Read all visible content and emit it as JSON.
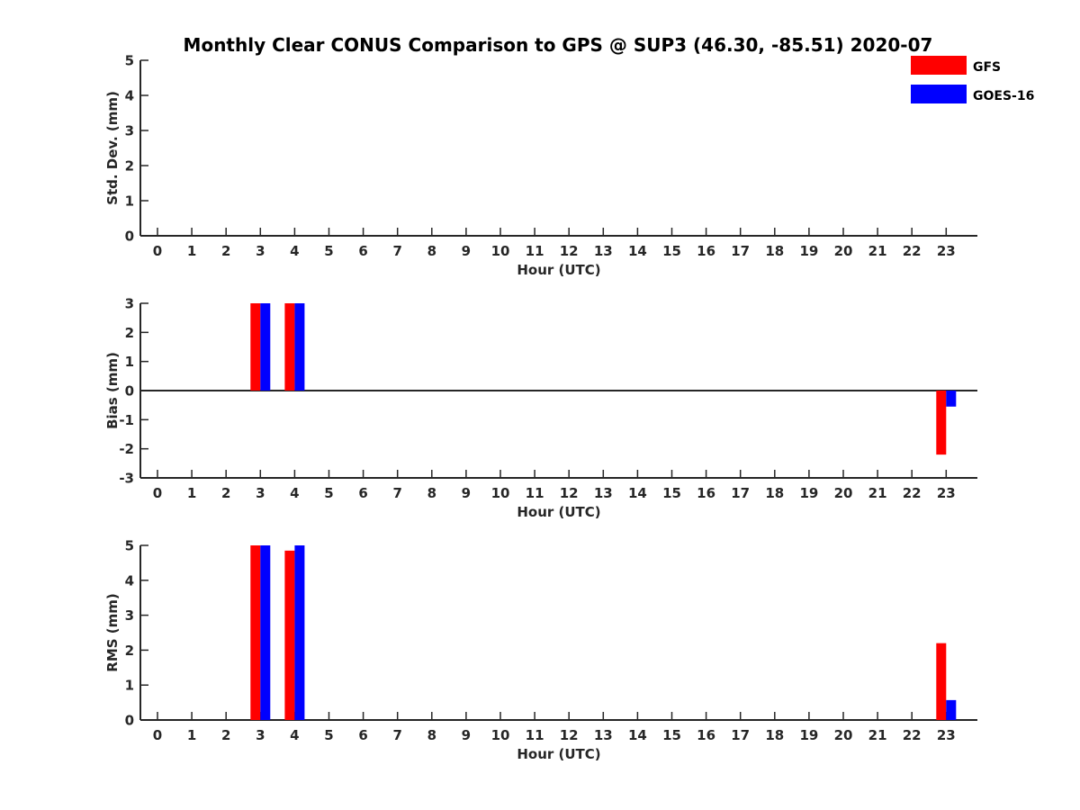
{
  "title": "Monthly Clear CONUS Comparison to GPS @ SUP3 (46.30, -85.51) 2020-07",
  "legend": {
    "placement": "top-right",
    "entries": [
      {
        "label": "GFS",
        "color": "#ff0000"
      },
      {
        "label": "GOES-16",
        "color": "#0000ff"
      }
    ]
  },
  "chart_data": [
    {
      "type": "bar",
      "xlabel": "Hour (UTC)",
      "ylabel": "Std. Dev. (mm)",
      "categories": [
        "0",
        "1",
        "2",
        "3",
        "4",
        "5",
        "6",
        "7",
        "8",
        "9",
        "10",
        "11",
        "12",
        "13",
        "14",
        "15",
        "16",
        "17",
        "18",
        "19",
        "20",
        "21",
        "22",
        "23"
      ],
      "ylim": [
        0,
        5
      ],
      "yticks": [
        "0",
        "1",
        "2",
        "3",
        "4",
        "5"
      ],
      "series": [
        {
          "name": "GFS",
          "color": "#ff0000",
          "values": [
            null,
            null,
            null,
            null,
            null,
            null,
            null,
            null,
            null,
            null,
            null,
            null,
            null,
            null,
            null,
            null,
            null,
            null,
            null,
            null,
            null,
            null,
            null,
            null
          ]
        },
        {
          "name": "GOES-16",
          "color": "#0000ff",
          "values": [
            null,
            null,
            null,
            null,
            null,
            null,
            null,
            null,
            null,
            null,
            null,
            null,
            null,
            null,
            null,
            null,
            null,
            null,
            null,
            null,
            null,
            null,
            null,
            null
          ]
        }
      ]
    },
    {
      "type": "bar",
      "xlabel": "Hour (UTC)",
      "ylabel": "Bias (mm)",
      "categories": [
        "0",
        "1",
        "2",
        "3",
        "4",
        "5",
        "6",
        "7",
        "8",
        "9",
        "10",
        "11",
        "12",
        "13",
        "14",
        "15",
        "16",
        "17",
        "18",
        "19",
        "20",
        "21",
        "22",
        "23"
      ],
      "ylim": [
        -3,
        3
      ],
      "yticks": [
        "-3",
        "-2",
        "-1",
        "0",
        "1",
        "2",
        "3"
      ],
      "series": [
        {
          "name": "GFS",
          "color": "#ff0000",
          "values": [
            null,
            null,
            null,
            3.0,
            3.0,
            null,
            null,
            null,
            null,
            null,
            null,
            null,
            null,
            null,
            null,
            null,
            null,
            null,
            null,
            null,
            null,
            null,
            null,
            -2.2
          ]
        },
        {
          "name": "GOES-16",
          "color": "#0000ff",
          "values": [
            null,
            null,
            null,
            3.0,
            3.0,
            null,
            null,
            null,
            null,
            null,
            null,
            null,
            null,
            null,
            null,
            null,
            null,
            null,
            null,
            null,
            null,
            null,
            null,
            -0.55
          ]
        }
      ]
    },
    {
      "type": "bar",
      "xlabel": "Hour (UTC)",
      "ylabel": "RMS (mm)",
      "categories": [
        "0",
        "1",
        "2",
        "3",
        "4",
        "5",
        "6",
        "7",
        "8",
        "9",
        "10",
        "11",
        "12",
        "13",
        "14",
        "15",
        "16",
        "17",
        "18",
        "19",
        "20",
        "21",
        "22",
        "23"
      ],
      "ylim": [
        0,
        5
      ],
      "yticks": [
        "0",
        "1",
        "2",
        "3",
        "4",
        "5"
      ],
      "series": [
        {
          "name": "GFS",
          "color": "#ff0000",
          "values": [
            null,
            null,
            null,
            5.0,
            4.85,
            null,
            null,
            null,
            null,
            null,
            null,
            null,
            null,
            null,
            null,
            null,
            null,
            null,
            null,
            null,
            null,
            null,
            null,
            2.2
          ]
        },
        {
          "name": "GOES-16",
          "color": "#0000ff",
          "values": [
            null,
            null,
            null,
            5.0,
            5.0,
            null,
            null,
            null,
            null,
            null,
            null,
            null,
            null,
            null,
            null,
            null,
            null,
            null,
            null,
            null,
            null,
            null,
            null,
            0.57
          ]
        }
      ]
    }
  ]
}
